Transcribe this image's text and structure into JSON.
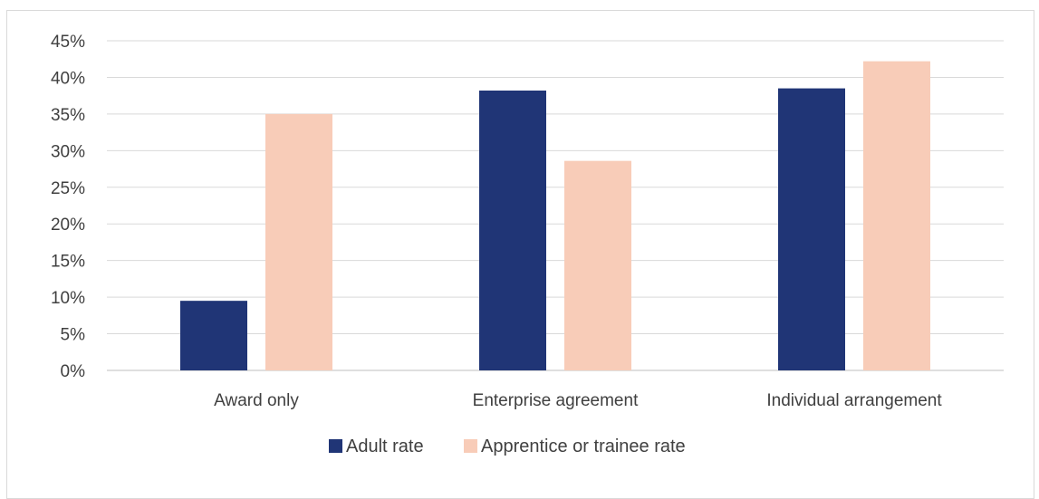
{
  "chart_data": {
    "type": "bar",
    "categories": [
      "Award only",
      "Enterprise agreement",
      "Individual arrangement"
    ],
    "series": [
      {
        "name": "Adult rate",
        "color": "#203576",
        "values": [
          9.5,
          38.2,
          38.5
        ]
      },
      {
        "name": "Apprentice or trainee rate",
        "color": "#f8ccb8",
        "values": [
          35.0,
          28.6,
          42.2
        ]
      }
    ],
    "ylim": [
      0,
      45
    ],
    "yticks": [
      0,
      5,
      10,
      15,
      20,
      25,
      30,
      35,
      40,
      45
    ],
    "ytick_suffix": "%",
    "grid": true,
    "legend_position": "bottom"
  }
}
